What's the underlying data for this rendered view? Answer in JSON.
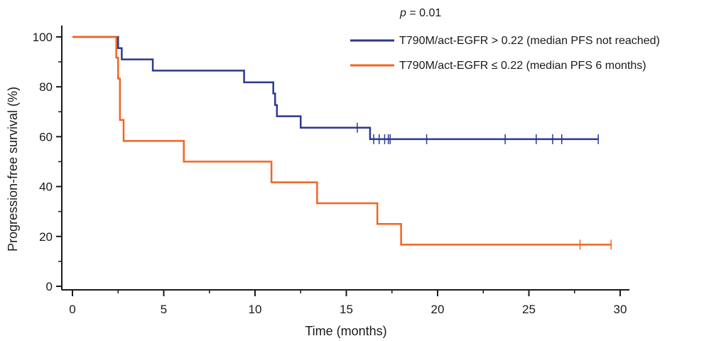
{
  "chart_data": {
    "type": "line",
    "subtype": "kaplan-meier",
    "xlabel": "Time (months)",
    "ylabel": "Progression-free survival (%)",
    "xlim": [
      0,
      30
    ],
    "ylim": [
      0,
      100
    ],
    "x_ticks": [
      0,
      5,
      10,
      15,
      20,
      25,
      30
    ],
    "y_ticks": [
      0,
      20,
      40,
      60,
      80,
      100
    ],
    "grid": false,
    "legend_position": "top-right",
    "annotation": {
      "italic": "p",
      "rest": " = 0.01"
    },
    "series": [
      {
        "name": "T790M/act-EGFR > 0.22 (median PFS not reached)",
        "color": "#2b3990",
        "steps": [
          [
            0,
            100
          ],
          [
            2.5,
            95.5
          ],
          [
            2.7,
            91
          ],
          [
            4.4,
            86.5
          ],
          [
            9.4,
            81.8
          ],
          [
            11,
            77.3
          ],
          [
            11.1,
            72.7
          ],
          [
            11.2,
            68.2
          ],
          [
            12.5,
            63.6
          ],
          [
            16.3,
            59
          ]
        ],
        "end": 28.8,
        "censored": [
          15.6,
          16.5,
          16.8,
          17.1,
          17.3,
          17.4,
          19.4,
          23.7,
          25.4,
          26.3,
          26.8,
          28.8
        ]
      },
      {
        "name": "T790M/act-EGFR ≤ 0.22 (median PFS 6 months)",
        "color": "#f26522",
        "steps": [
          [
            0,
            100
          ],
          [
            2.4,
            91.7
          ],
          [
            2.5,
            83.3
          ],
          [
            2.6,
            66.7
          ],
          [
            2.8,
            58.3
          ],
          [
            6.1,
            50
          ],
          [
            10.9,
            41.7
          ],
          [
            13.4,
            33.3
          ],
          [
            16.7,
            25
          ],
          [
            18,
            16.7
          ]
        ],
        "end": 29.5,
        "censored": [
          27.8,
          29.5
        ]
      }
    ]
  }
}
